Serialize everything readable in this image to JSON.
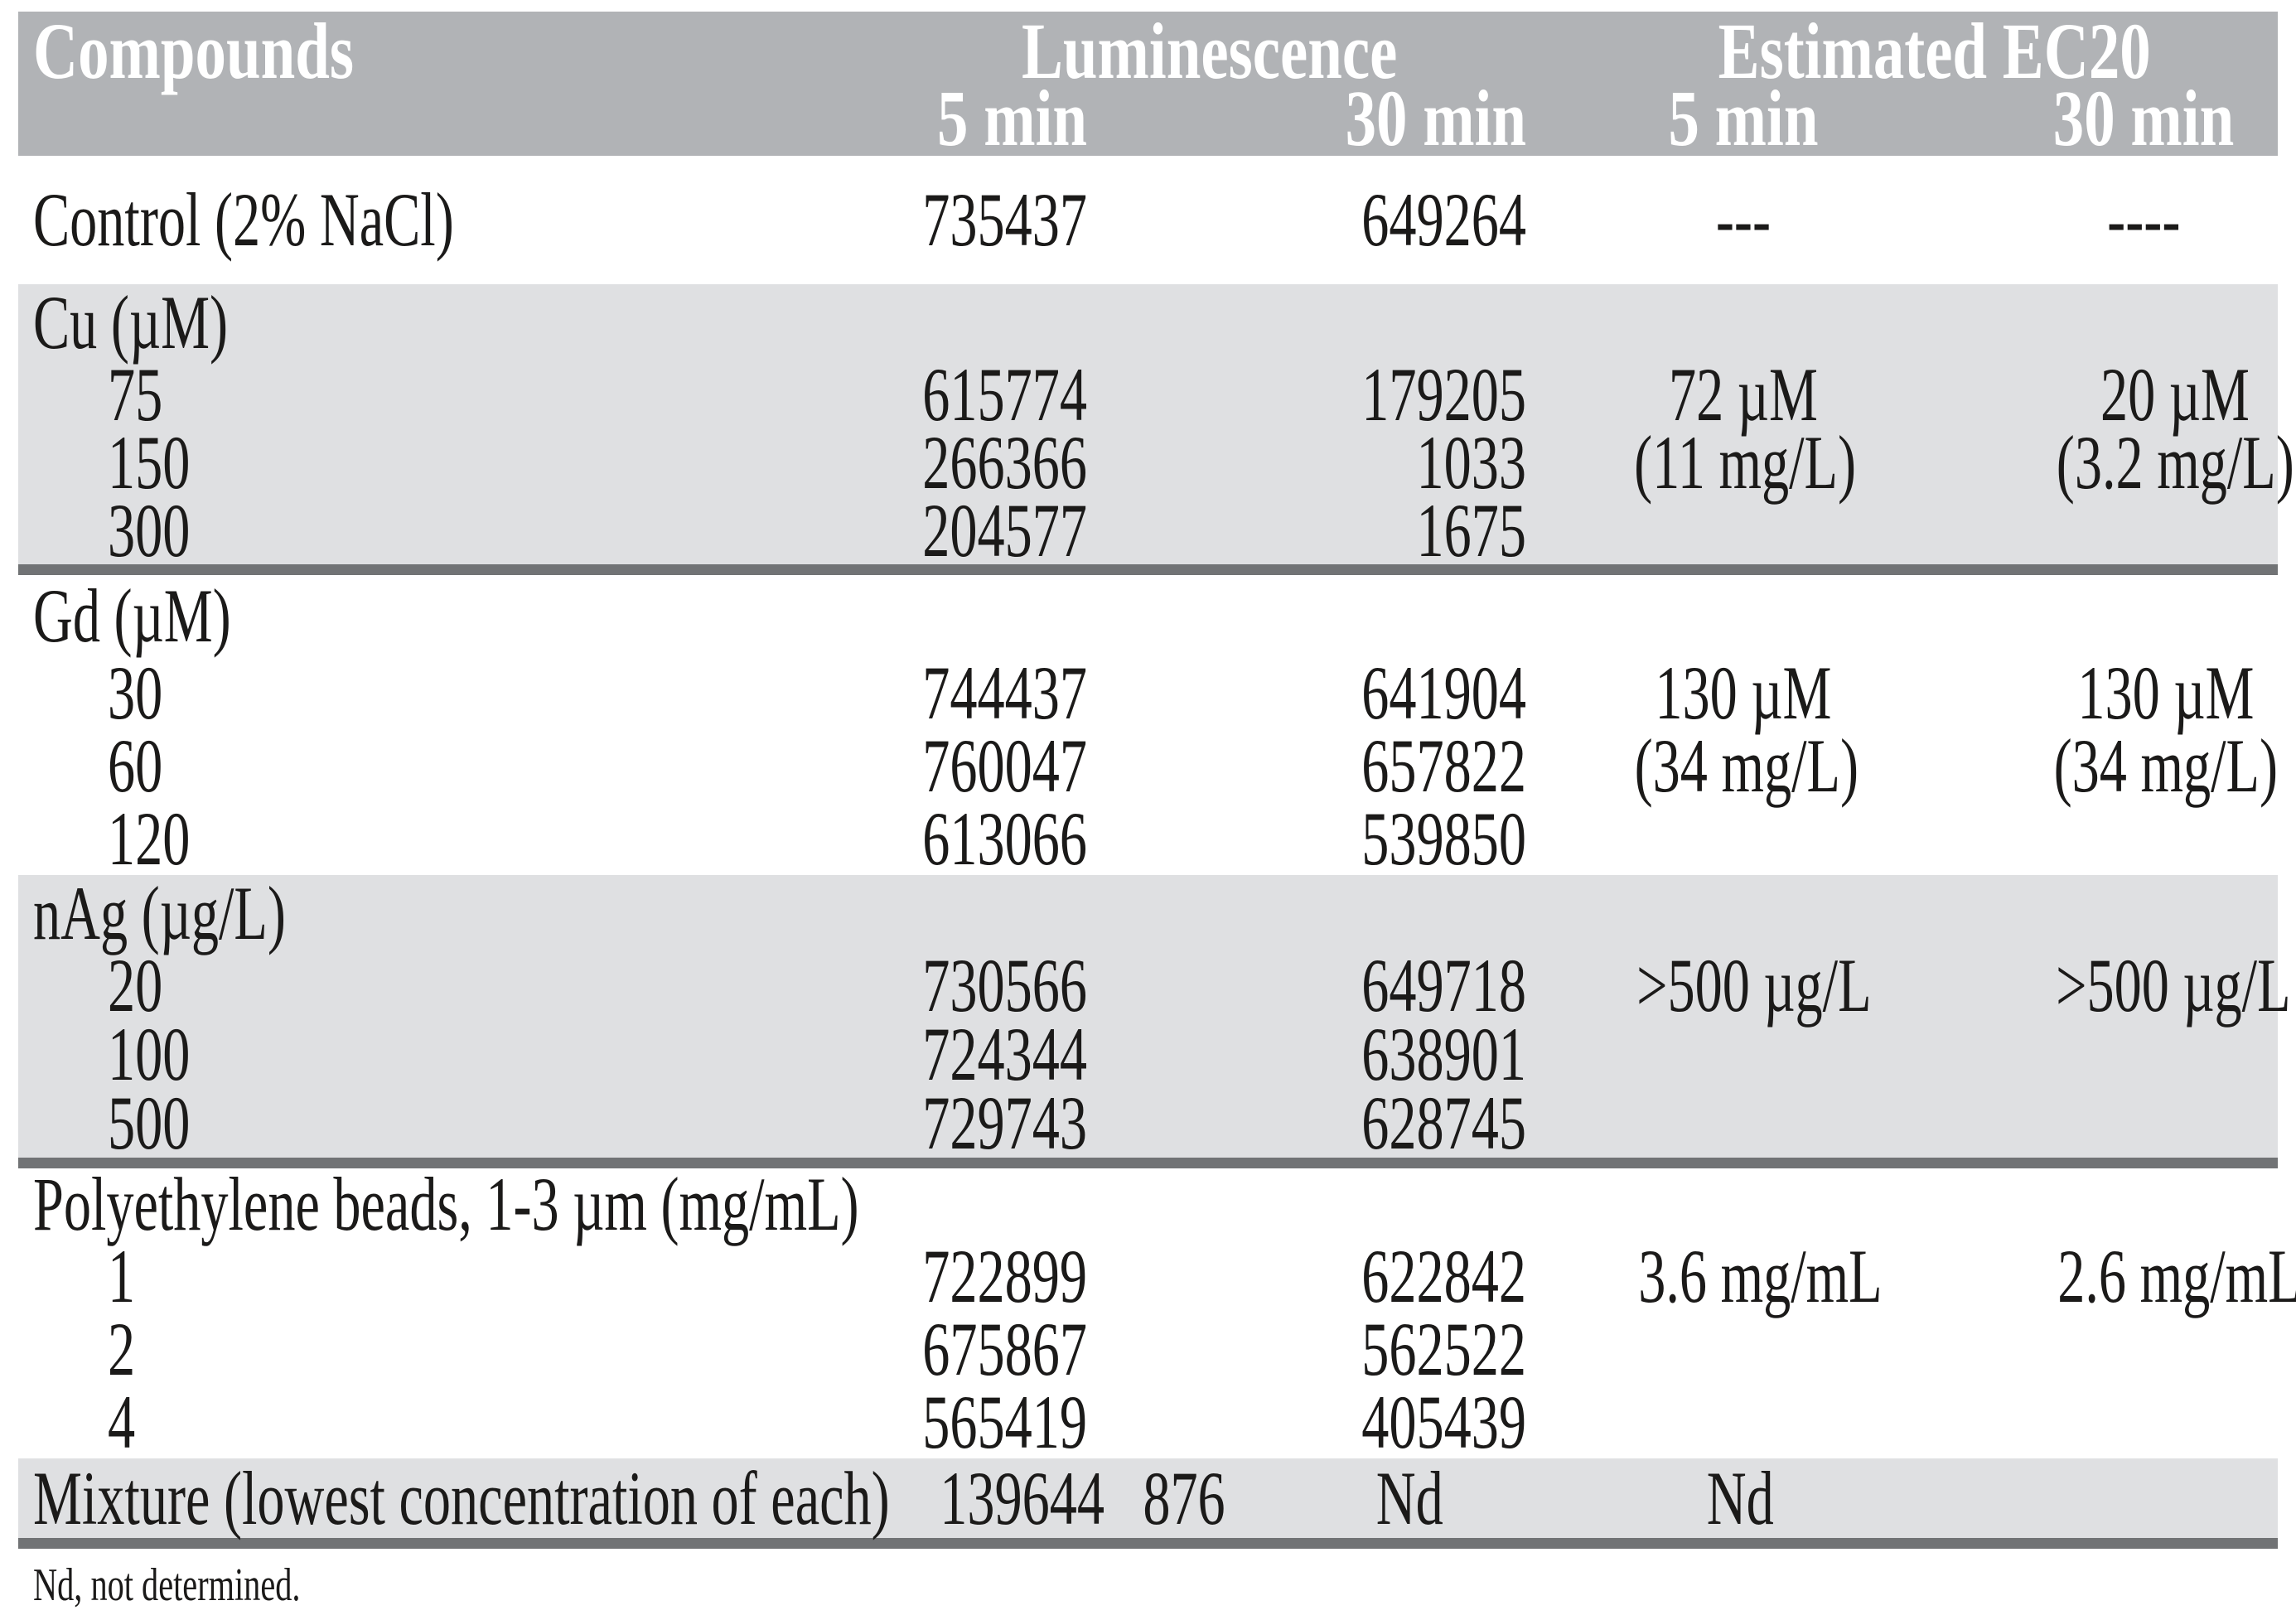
{
  "table": {
    "header": {
      "compounds": "Compounds",
      "luminescence": "Luminescence",
      "ec20": "Estimated EC20",
      "lum_5min": "5 min",
      "lum_30min": "30 min",
      "ec_5min": "5 min",
      "ec_30min": "30 min"
    },
    "control": {
      "label": "Control (2% NaCl)",
      "lum5": "735437",
      "lum30": "649264",
      "ec5": "---",
      "ec30": "----"
    },
    "sections": [
      {
        "label": "Cu (µM)",
        "shaded": true,
        "rows": [
          {
            "conc": "75",
            "lum5": "615774",
            "lum30": "179205"
          },
          {
            "conc": "150",
            "lum5": "266366",
            "lum30": "1033"
          },
          {
            "conc": "300",
            "lum5": "204577",
            "lum30": "1675"
          }
        ],
        "ec5": [
          "72 µM",
          "(11 mg/L)"
        ],
        "ec30": [
          "20 µM",
          "(3.2 mg/L)"
        ]
      },
      {
        "label": "Gd (µM)",
        "shaded": false,
        "rows": [
          {
            "conc": "30",
            "lum5": "744437",
            "lum30": "641904"
          },
          {
            "conc": "60",
            "lum5": "760047",
            "lum30": "657822"
          },
          {
            "conc": "120",
            "lum5": "613066",
            "lum30": "539850"
          }
        ],
        "ec5": [
          "130 µM",
          "(34 mg/L)"
        ],
        "ec30": [
          "130 µM",
          "(34 mg/L)"
        ]
      },
      {
        "label": "nAg (µg/L)",
        "shaded": true,
        "rows": [
          {
            "conc": "20",
            "lum5": "730566",
            "lum30": "649718"
          },
          {
            "conc": "100",
            "lum5": "724344",
            "lum30": "638901"
          },
          {
            "conc": "500",
            "lum5": "729743",
            "lum30": "628745"
          }
        ],
        "ec5": [
          ">500 µg/L"
        ],
        "ec30": [
          ">500 µg/L"
        ]
      },
      {
        "label": "Polyethylene beads, 1-3 µm (mg/mL)",
        "shaded": false,
        "rows": [
          {
            "conc": "1",
            "lum5": "722899",
            "lum30": "622842"
          },
          {
            "conc": "2",
            "lum5": "675867",
            "lum30": "562522"
          },
          {
            "conc": "4",
            "lum5": "565419",
            "lum30": "405439"
          }
        ],
        "ec5": [
          "3.6 mg/mL"
        ],
        "ec30": [
          "2.6 mg/mL"
        ]
      }
    ],
    "mixture": {
      "label": "Mixture (lowest concentration of each)",
      "lum5": "139644",
      "lum30": "876",
      "ec5": "Nd",
      "ec30": "Nd"
    },
    "footnote": "Nd, not determined."
  }
}
